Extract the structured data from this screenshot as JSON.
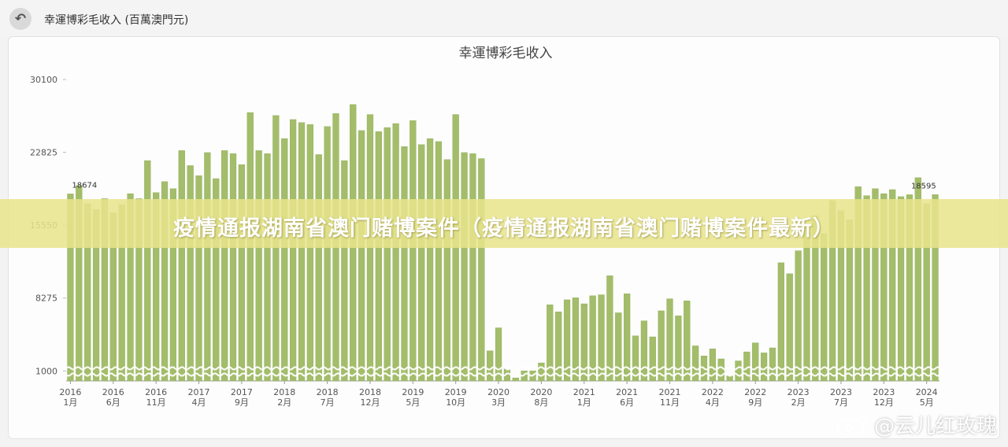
{
  "header": {
    "title": "幸運博彩毛收入 (百萬澳門元)"
  },
  "chart_data": {
    "type": "bar",
    "title": "幸運博彩毛收入",
    "y_ticks": [
      1000,
      8275,
      15550,
      22825,
      30100
    ],
    "ylim": [
      0,
      30100
    ],
    "x_ticks": [
      {
        "year": "2016",
        "month": "1月",
        "index": 0
      },
      {
        "year": "2016",
        "month": "6月",
        "index": 5
      },
      {
        "year": "2016",
        "month": "11月",
        "index": 10
      },
      {
        "year": "2017",
        "month": "4月",
        "index": 15
      },
      {
        "year": "2017",
        "month": "9月",
        "index": 20
      },
      {
        "year": "2018",
        "month": "2月",
        "index": 25
      },
      {
        "year": "2018",
        "month": "7月",
        "index": 30
      },
      {
        "year": "2018",
        "month": "12月",
        "index": 35
      },
      {
        "year": "2019",
        "month": "5月",
        "index": 40
      },
      {
        "year": "2019",
        "month": "10月",
        "index": 45
      },
      {
        "year": "2020",
        "month": "3月",
        "index": 50
      },
      {
        "year": "2020",
        "month": "8月",
        "index": 55
      },
      {
        "year": "2021",
        "month": "1月",
        "index": 60
      },
      {
        "year": "2021",
        "month": "6月",
        "index": 65
      },
      {
        "year": "2021",
        "month": "11月",
        "index": 70
      },
      {
        "year": "2022",
        "month": "4月",
        "index": 75
      },
      {
        "year": "2022",
        "month": "9月",
        "index": 80
      },
      {
        "year": "2023",
        "month": "2月",
        "index": 85
      },
      {
        "year": "2023",
        "month": "7月",
        "index": 90
      },
      {
        "year": "2023",
        "month": "12月",
        "index": 95
      },
      {
        "year": "2024",
        "month": "5月",
        "index": 100
      }
    ],
    "values": [
      18674,
      19500,
      17700,
      17100,
      18200,
      16800,
      17600,
      18700,
      18200,
      22000,
      18800,
      19900,
      19200,
      23000,
      21500,
      20500,
      22800,
      20200,
      23000,
      22700,
      21600,
      26800,
      23000,
      22700,
      26500,
      24200,
      26100,
      25800,
      25600,
      22600,
      25400,
      26700,
      22000,
      27600,
      25000,
      26600,
      24900,
      25300,
      25700,
      23400,
      26000,
      23600,
      24200,
      23900,
      22100,
      26600,
      22800,
      22700,
      22200,
      3000,
      5300,
      1200,
      300,
      1000,
      1000,
      1800,
      7600,
      6900,
      8100,
      8300,
      7700,
      8500,
      8600,
      10500,
      6800,
      8700,
      4500,
      6000,
      4400,
      7000,
      8200,
      6500,
      8000,
      3500,
      2500,
      3200,
      2200,
      500,
      2000,
      2900,
      3800,
      2800,
      3300,
      11800,
      10700,
      13000,
      15500,
      16500,
      14700,
      18000,
      17000,
      16100,
      19400,
      18500,
      19200,
      18700,
      19100,
      18400,
      18595,
      20300,
      17700,
      18600
    ],
    "data_labels": [
      {
        "index": 0,
        "text": "18674"
      },
      {
        "index": 98,
        "text": "18595"
      }
    ],
    "colors": {
      "bar": "#a3bd6a",
      "bar_edge": "#8fab55",
      "tick_text": "#555555",
      "banner": "#e8e48c"
    }
  },
  "banner": {
    "text": "疫情通报湖南省澳门赌博案件（疫情通报湖南省澳门赌博案件最新）"
  },
  "watermark": {
    "text": "@云儿红玫瑰",
    "icon": "weibo-icon"
  }
}
